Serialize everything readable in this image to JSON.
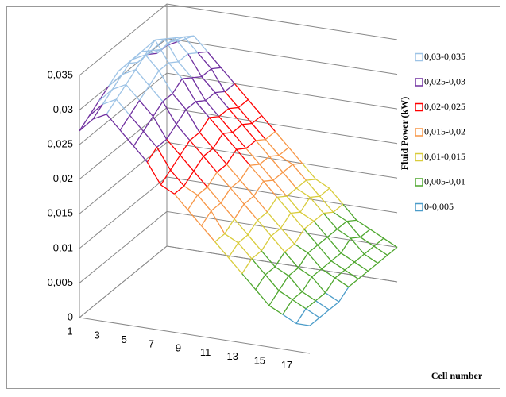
{
  "chart_data": {
    "type": "surface",
    "x_label": "Cell number",
    "y_label": "Fluid Power (kW)",
    "categories": [
      1,
      null,
      3,
      null,
      5,
      null,
      7,
      null,
      9,
      null,
      11,
      null,
      13,
      null,
      15,
      null,
      17,
      null
    ],
    "series": [
      {
        "values": [
          0.027,
          0.029,
          0.03,
          0.028,
          0.026,
          0.024,
          0.021,
          0.02,
          0.018,
          0.016,
          0.014,
          0.012,
          0.01,
          0.008,
          0.006,
          0.005,
          0.004,
          0.004
        ]
      },
      {
        "values": [
          0.028,
          0.03,
          0.031,
          0.029,
          0.027,
          0.025,
          0.022,
          0.02,
          0.019,
          0.017,
          0.014,
          0.013,
          0.011,
          0.009,
          0.007,
          0.006,
          0.005,
          0.004
        ]
      },
      {
        "values": [
          0.029,
          0.031,
          0.032,
          0.03,
          0.028,
          0.025,
          0.023,
          0.021,
          0.019,
          0.017,
          0.015,
          0.013,
          0.011,
          0.009,
          0.008,
          0.006,
          0.005,
          0.004
        ]
      },
      {
        "values": [
          0.03,
          0.032,
          0.033,
          0.031,
          0.029,
          0.026,
          0.024,
          0.022,
          0.02,
          0.018,
          0.016,
          0.014,
          0.012,
          0.01,
          0.008,
          0.007,
          0.005,
          0.004
        ]
      },
      {
        "values": [
          0.031,
          0.033,
          0.034,
          0.032,
          0.029,
          0.027,
          0.024,
          0.022,
          0.02,
          0.018,
          0.016,
          0.014,
          0.012,
          0.01,
          0.009,
          0.007,
          0.006,
          0.005
        ]
      },
      {
        "values": [
          0.031,
          0.033,
          0.035,
          0.032,
          0.03,
          0.027,
          0.025,
          0.023,
          0.021,
          0.019,
          0.017,
          0.015,
          0.013,
          0.011,
          0.009,
          0.007,
          0.006,
          0.005
        ]
      },
      {
        "values": [
          0.03,
          0.032,
          0.034,
          0.031,
          0.029,
          0.026,
          0.024,
          0.022,
          0.02,
          0.018,
          0.016,
          0.014,
          0.012,
          0.011,
          0.009,
          0.007,
          0.006,
          0.005
        ]
      },
      {
        "values": [
          0.03,
          0.031,
          0.033,
          0.031,
          0.028,
          0.026,
          0.024,
          0.022,
          0.02,
          0.018,
          0.016,
          0.014,
          0.013,
          0.011,
          0.009,
          0.008,
          0.006,
          0.005
        ]
      },
      {
        "values": [
          0.029,
          0.031,
          0.032,
          0.03,
          0.028,
          0.025,
          0.023,
          0.021,
          0.019,
          0.017,
          0.016,
          0.014,
          0.012,
          0.01,
          0.009,
          0.007,
          0.006,
          0.005
        ]
      },
      {
        "values": [
          0.029,
          0.03,
          0.031,
          0.029,
          0.027,
          0.025,
          0.023,
          0.021,
          0.019,
          0.017,
          0.015,
          0.013,
          0.012,
          0.01,
          0.008,
          0.007,
          0.006,
          0.005
        ]
      }
    ],
    "ylim": [
      0,
      0.035
    ],
    "yticks": [
      0,
      {
        "value": 0.005,
        "label": "0,005"
      },
      {
        "value": 0.01,
        "label": "0,01"
      },
      {
        "value": 0.015,
        "label": "0,015"
      },
      {
        "value": 0.02,
        "label": "0,02"
      },
      {
        "value": 0.025,
        "label": "0,025"
      },
      {
        "value": 0.03,
        "label": "0,03"
      },
      {
        "value": 0.035,
        "label": "0,035"
      }
    ],
    "grid": true,
    "legend": "right",
    "bands": [
      {
        "label": "0,03-0,035",
        "from": 0.03,
        "to": 0.035,
        "color": "#9dc3e6"
      },
      {
        "label": "0,025-0,03",
        "from": 0.025,
        "to": 0.03,
        "color": "#7030a0"
      },
      {
        "label": "0,02-0,025",
        "from": 0.02,
        "to": 0.025,
        "color": "#ff0000"
      },
      {
        "label": "0,015-0,02",
        "from": 0.015,
        "to": 0.02,
        "color": "#f79646"
      },
      {
        "label": "0,01-0,015",
        "from": 0.01,
        "to": 0.015,
        "color": "#d9cc3c"
      },
      {
        "label": "0,005-0,01",
        "from": 0.005,
        "to": 0.01,
        "color": "#4ea72e"
      },
      {
        "label": "0-0,005",
        "from": 0,
        "to": 0.005,
        "color": "#4b9cc9"
      }
    ]
  }
}
